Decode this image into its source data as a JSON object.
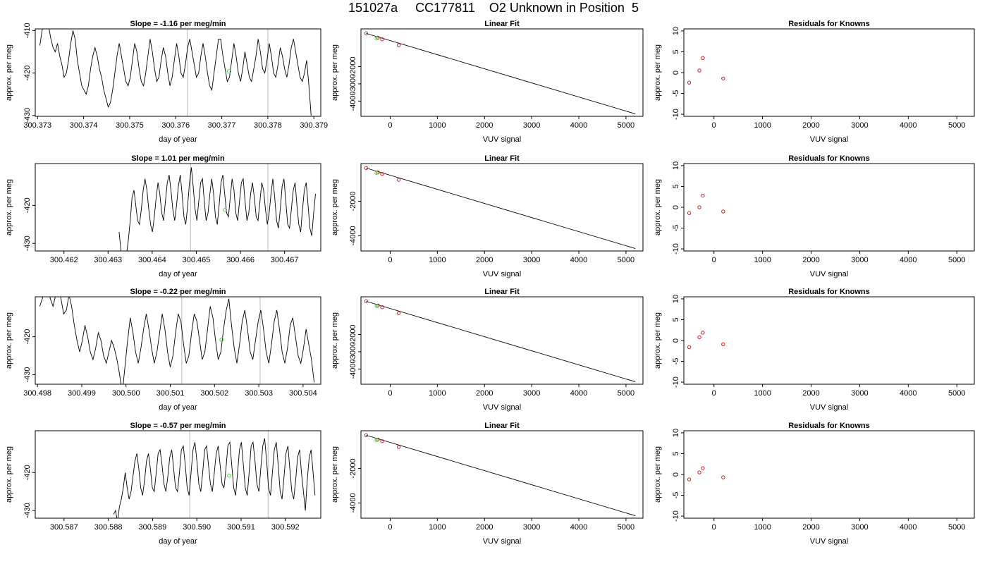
{
  "title": "151027a     CC177811    O2 Unknown in Position  5",
  "colors": {
    "trace": "#000000",
    "known_marker": "#cc2222",
    "unknown_marker": "#44dd44",
    "vline": "#bbbbbb"
  },
  "chart_data": [
    {
      "type": "line",
      "panel": "time-series",
      "title": "Slope =  -1.16  per meg/min",
      "xlabel": "day of year",
      "ylabel": "approx. per meg",
      "xlim": [
        300.37295,
        300.37915
      ],
      "ylim": [
        -430.2,
        -409.6
      ],
      "xticks": [
        300.373,
        300.374,
        300.375,
        300.376,
        300.377,
        300.378,
        300.379
      ],
      "xtick_labels": [
        "300.373",
        "300.374",
        "300.375",
        "300.376",
        "300.377",
        "300.378",
        "300.379"
      ],
      "yticks": [
        -410,
        -420,
        -430
      ],
      "ytick_labels": [
        "-410",
        "-420",
        "-430"
      ],
      "vlines": [
        300.37625,
        300.378
      ],
      "unknown_point": {
        "x": 300.37716,
        "y": -419.6
      },
      "trace_x_range": [
        300.37305,
        300.37894
      ],
      "trace_y": [
        -413.5,
        -410,
        -407,
        -405,
        -409,
        -412,
        -414,
        -415,
        -413,
        -416,
        -418,
        -421,
        -420,
        -417,
        -413,
        -410,
        -412,
        -417,
        -420,
        -423,
        -424,
        -425,
        -423,
        -419,
        -416,
        -414,
        -416,
        -419,
        -421,
        -424,
        -426,
        -428,
        -427,
        -424,
        -420,
        -416,
        -413,
        -416,
        -419,
        -422,
        -423,
        -421,
        -417,
        -413,
        -415,
        -419,
        -422,
        -423,
        -420,
        -416,
        -412,
        -415,
        -419,
        -422,
        -421,
        -417,
        -414,
        -416,
        -420,
        -423,
        -421,
        -417,
        -413,
        -416,
        -420,
        -421,
        -418,
        -414,
        -412,
        -415,
        -418,
        -421,
        -420,
        -416,
        -413,
        -416,
        -420,
        -423,
        -424,
        -420,
        -416,
        -412,
        -412,
        -416,
        -419,
        -422,
        -421,
        -417,
        -413,
        -416,
        -420,
        -422,
        -419,
        -415,
        -418,
        -421,
        -422,
        -419,
        -416,
        -412,
        -415,
        -419,
        -420,
        -417,
        -413,
        -416,
        -420,
        -421,
        -418,
        -414,
        -416,
        -419,
        -421,
        -418,
        -414,
        -412,
        -415,
        -418,
        -421,
        -422,
        -420,
        -417,
        -423,
        -430
      ]
    },
    {
      "type": "scatter",
      "panel": "linear-fit",
      "title": "Linear Fit",
      "xlabel": "VUV signal",
      "ylabel": "approx. per meg",
      "xlim": [
        -620,
        5360
      ],
      "ylim": [
        -4880,
        180
      ],
      "xticks": [
        0,
        1000,
        2000,
        3000,
        4000,
        5000
      ],
      "xtick_labels": [
        "0",
        "1000",
        "2000",
        "3000",
        "4000",
        "5000"
      ],
      "yticks": [
        -2000,
        -3000,
        -4000
      ],
      "ytick_labels": [
        "-2000",
        "-3000",
        "-4000"
      ],
      "knowns": [
        [
          -510,
          -80
        ],
        [
          -260,
          -330
        ],
        [
          -170,
          -420
        ],
        [
          180,
          -760
        ]
      ],
      "unknown": [
        -290,
        -360
      ],
      "fit_line": [
        [
          -510,
          -80
        ],
        [
          5200,
          -4740
        ]
      ]
    },
    {
      "type": "scatter",
      "panel": "residuals",
      "title": "Residuals for Knowns",
      "xlabel": "VUV signal",
      "ylabel": "approx. per meg",
      "xlim": [
        -620,
        5360
      ],
      "ylim": [
        -10.5,
        10.5
      ],
      "xticks": [
        0,
        1000,
        2000,
        3000,
        4000,
        5000
      ],
      "xtick_labels": [
        "0",
        "1000",
        "2000",
        "3000",
        "4000",
        "5000"
      ],
      "yticks": [
        10,
        5,
        0,
        -5,
        -10
      ],
      "ytick_labels": [
        "10",
        "5",
        "0",
        "-5",
        "-10"
      ],
      "residuals": [
        [
          -510,
          -2.4
        ],
        [
          -300,
          0.5
        ],
        [
          -230,
          3.5
        ],
        [
          190,
          -1.4
        ]
      ]
    },
    {
      "type": "line",
      "panel": "time-series",
      "title": "Slope =  1.01  per meg/min",
      "xlabel": "day of year",
      "ylabel": "approx. per meg",
      "xlim": [
        300.46135,
        300.46782
      ],
      "ylim": [
        -432,
        -409
      ],
      "xticks": [
        300.462,
        300.463,
        300.464,
        300.465,
        300.466,
        300.467
      ],
      "xtick_labels": [
        "300.462",
        "300.463",
        "300.464",
        "300.465",
        "300.466",
        "300.467"
      ],
      "yticks": [
        -420,
        -430
      ],
      "ytick_labels": [
        "-420",
        "-430"
      ],
      "vlines": [
        300.46487,
        300.46662
      ],
      "unknown_point": {
        "x": 300.46565,
        "y": -421.2
      },
      "trace_x_range": [
        300.46325,
        300.4677
      ],
      "trace_y": [
        -427,
        -432,
        -436,
        -437,
        -433,
        -429,
        -424,
        -418,
        -416,
        -420,
        -424,
        -425,
        -421,
        -416,
        -413,
        -416,
        -421,
        -425,
        -427,
        -423,
        -418,
        -414,
        -417,
        -422,
        -424,
        -419,
        -414,
        -412,
        -416,
        -421,
        -424,
        -420,
        -415,
        -412,
        -417,
        -423,
        -425,
        -420,
        -414,
        -410,
        -415,
        -421,
        -424,
        -419,
        -414,
        -413,
        -419,
        -424,
        -422,
        -417,
        -413,
        -417,
        -423,
        -425,
        -420,
        -414,
        -412,
        -417,
        -422,
        -423,
        -418,
        -413,
        -416,
        -422,
        -424,
        -419,
        -414,
        -413,
        -419,
        -424,
        -422,
        -417,
        -414,
        -418,
        -423,
        -424,
        -419,
        -414,
        -416,
        -421,
        -425,
        -422,
        -417,
        -413,
        -418,
        -424,
        -426,
        -421,
        -415,
        -413,
        -419,
        -425,
        -426,
        -421,
        -416,
        -414,
        -420,
        -425,
        -427,
        -421,
        -416,
        -414,
        -420,
        -426,
        -428,
        -422,
        -417
      ]
    },
    {
      "type": "scatter",
      "panel": "linear-fit",
      "title": "Linear Fit",
      "xlabel": "VUV signal",
      "ylabel": "approx. per meg",
      "xlim": [
        -620,
        5360
      ],
      "ylim": [
        -4880,
        180
      ],
      "xticks": [
        0,
        1000,
        2000,
        3000,
        4000,
        5000
      ],
      "xtick_labels": [
        "0",
        "1000",
        "2000",
        "3000",
        "4000",
        "5000"
      ],
      "yticks": [
        -2000,
        -4000
      ],
      "ytick_labels": [
        "-2000",
        "-4000"
      ],
      "knowns": [
        [
          -510,
          -80
        ],
        [
          -260,
          -330
        ],
        [
          -170,
          -420
        ],
        [
          180,
          -760
        ]
      ],
      "unknown": [
        -290,
        -360
      ],
      "fit_line": [
        [
          -510,
          -80
        ],
        [
          5200,
          -4740
        ]
      ]
    },
    {
      "type": "scatter",
      "panel": "residuals",
      "title": "Residuals for Knowns",
      "xlabel": "VUV signal",
      "ylabel": "approx. per meg",
      "xlim": [
        -620,
        5360
      ],
      "ylim": [
        -10.5,
        10.5
      ],
      "xticks": [
        0,
        1000,
        2000,
        3000,
        4000,
        5000
      ],
      "xtick_labels": [
        "0",
        "1000",
        "2000",
        "3000",
        "4000",
        "5000"
      ],
      "yticks": [
        10,
        5,
        0,
        -5,
        -10
      ],
      "ytick_labels": [
        "10",
        "5",
        "0",
        "-5",
        "-10"
      ],
      "residuals": [
        [
          -510,
          -1.4
        ],
        [
          -300,
          0
        ],
        [
          -230,
          2.8
        ],
        [
          190,
          -1
        ]
      ]
    },
    {
      "type": "line",
      "panel": "time-series",
      "title": "Slope =  -0.22  per meg/min",
      "xlabel": "day of year",
      "ylabel": "approx. per meg",
      "xlim": [
        300.49795,
        300.5044
      ],
      "ylim": [
        -432.5,
        -409.5
      ],
      "xticks": [
        300.498,
        300.499,
        300.5,
        300.501,
        300.502,
        300.503,
        300.504
      ],
      "xtick_labels": [
        "300.498",
        "300.499",
        "300.500",
        "300.501",
        "300.502",
        "300.503",
        "300.504"
      ],
      "yticks": [
        -420,
        -430
      ],
      "ytick_labels": [
        "-420",
        "-430"
      ],
      "vlines": [
        300.50126,
        300.50303
      ],
      "unknown_point": {
        "x": 300.50216,
        "y": -420.8
      },
      "trace_x_range": [
        300.49805,
        300.50425
      ],
      "trace_y": [
        -412,
        -410,
        -405,
        -407,
        -410,
        -412,
        -409,
        -407,
        -410,
        -414,
        -413,
        -409,
        -412,
        -417,
        -421,
        -424,
        -421,
        -417,
        -420,
        -424,
        -426,
        -423,
        -419,
        -421,
        -425,
        -427,
        -424,
        -421,
        -423,
        -426,
        -430,
        -435,
        -428,
        -421,
        -415,
        -419,
        -424,
        -427,
        -423,
        -418,
        -414,
        -418,
        -423,
        -427,
        -424,
        -419,
        -414,
        -418,
        -424,
        -428,
        -425,
        -419,
        -414,
        -416,
        -422,
        -427,
        -425,
        -419,
        -414,
        -416,
        -421,
        -426,
        -424,
        -418,
        -412,
        -415,
        -421,
        -426,
        -424,
        -418,
        -413,
        -410,
        -417,
        -423,
        -427,
        -422,
        -416,
        -413,
        -418,
        -424,
        -426,
        -421,
        -416,
        -413,
        -418,
        -424,
        -427,
        -422,
        -416,
        -413,
        -418,
        -424,
        -427,
        -423,
        -417,
        -415,
        -420,
        -425,
        -427,
        -423,
        -418,
        -422,
        -426,
        -432
      ]
    },
    {
      "type": "scatter",
      "panel": "linear-fit",
      "title": "Linear Fit",
      "xlabel": "VUV signal",
      "ylabel": "approx. per meg",
      "xlim": [
        -620,
        5360
      ],
      "ylim": [
        -4880,
        180
      ],
      "xticks": [
        0,
        1000,
        2000,
        3000,
        4000,
        5000
      ],
      "xtick_labels": [
        "0",
        "1000",
        "2000",
        "3000",
        "4000",
        "5000"
      ],
      "yticks": [
        -2000,
        -3000,
        -4000
      ],
      "ytick_labels": [
        "-2000",
        "-3000",
        "-4000"
      ],
      "knowns": [
        [
          -510,
          -80
        ],
        [
          -260,
          -330
        ],
        [
          -170,
          -420
        ],
        [
          180,
          -760
        ]
      ],
      "unknown": [
        -290,
        -360
      ],
      "fit_line": [
        [
          -510,
          -80
        ],
        [
          5200,
          -4740
        ]
      ]
    },
    {
      "type": "scatter",
      "panel": "residuals",
      "title": "Residuals for Knowns",
      "xlabel": "VUV signal",
      "ylabel": "approx. per meg",
      "xlim": [
        -620,
        5360
      ],
      "ylim": [
        -10.5,
        10.5
      ],
      "xticks": [
        0,
        1000,
        2000,
        3000,
        4000,
        5000
      ],
      "xtick_labels": [
        "0",
        "1000",
        "2000",
        "3000",
        "4000",
        "5000"
      ],
      "yticks": [
        10,
        5,
        0,
        -5,
        -10
      ],
      "ytick_labels": [
        "10",
        "5",
        "0",
        "-5",
        "-10"
      ],
      "residuals": [
        [
          -510,
          -1.6
        ],
        [
          -300,
          0.8
        ],
        [
          -230,
          1.9
        ],
        [
          190,
          -0.9
        ]
      ]
    },
    {
      "type": "line",
      "panel": "time-series",
      "title": "Slope =  -0.57  per meg/min",
      "xlabel": "day of year",
      "ylabel": "approx. per meg",
      "xlim": [
        300.58635,
        300.5928
      ],
      "ylim": [
        -432,
        -409
      ],
      "xticks": [
        300.587,
        300.588,
        300.589,
        300.59,
        300.591,
        300.592
      ],
      "xtick_labels": [
        "300.587",
        "300.588",
        "300.589",
        "300.590",
        "300.591",
        "300.592"
      ],
      "yticks": [
        -420,
        -430
      ],
      "ytick_labels": [
        "-420",
        "-430"
      ],
      "vlines": [
        300.58984,
        300.59161
      ],
      "unknown_point": {
        "x": 300.59073,
        "y": -420.8
      },
      "trace_x_range": [
        300.58812,
        300.59267
      ],
      "trace_y": [
        -431,
        -430,
        -433,
        -429,
        -427,
        -424,
        -420,
        -424,
        -427,
        -425,
        -421,
        -417,
        -415,
        -419,
        -424,
        -426,
        -422,
        -417,
        -415,
        -419,
        -424,
        -425,
        -420,
        -415,
        -414,
        -418,
        -423,
        -425,
        -421,
        -416,
        -414,
        -419,
        -424,
        -425,
        -420,
        -414,
        -413,
        -418,
        -424,
        -426,
        -420,
        -414,
        -412,
        -417,
        -423,
        -425,
        -420,
        -414,
        -413,
        -418,
        -423,
        -425,
        -420,
        -415,
        -413,
        -418,
        -423,
        -424,
        -419,
        -413,
        -412,
        -418,
        -424,
        -426,
        -420,
        -414,
        -412,
        -418,
        -424,
        -426,
        -420,
        -413,
        -412,
        -417,
        -423,
        -425,
        -419,
        -413,
        -411,
        -417,
        -424,
        -426,
        -420,
        -414,
        -412,
        -418,
        -425,
        -427,
        -421,
        -415,
        -413,
        -419,
        -425,
        -427,
        -422,
        -416,
        -414,
        -420,
        -425,
        -430,
        -422,
        -416,
        -414,
        -420,
        -426
      ]
    },
    {
      "type": "scatter",
      "panel": "linear-fit",
      "title": "Linear Fit",
      "xlabel": "VUV signal",
      "ylabel": "approx. per meg",
      "xlim": [
        -620,
        5360
      ],
      "ylim": [
        -4880,
        180
      ],
      "xticks": [
        0,
        1000,
        2000,
        3000,
        4000,
        5000
      ],
      "xtick_labels": [
        "0",
        "1000",
        "2000",
        "3000",
        "4000",
        "5000"
      ],
      "yticks": [
        -2000,
        -4000
      ],
      "ytick_labels": [
        "-2000",
        "-4000"
      ],
      "knowns": [
        [
          -510,
          -80
        ],
        [
          -260,
          -330
        ],
        [
          -170,
          -420
        ],
        [
          180,
          -760
        ]
      ],
      "unknown": [
        -290,
        -360
      ],
      "fit_line": [
        [
          -510,
          -80
        ],
        [
          5200,
          -4740
        ]
      ]
    },
    {
      "type": "scatter",
      "panel": "residuals",
      "title": "Residuals for Knowns",
      "xlabel": "VUV signal",
      "ylabel": "approx. per meg",
      "xlim": [
        -620,
        5360
      ],
      "ylim": [
        -10.5,
        10.5
      ],
      "xticks": [
        0,
        1000,
        2000,
        3000,
        4000,
        5000
      ],
      "xtick_labels": [
        "0",
        "1000",
        "2000",
        "3000",
        "4000",
        "5000"
      ],
      "yticks": [
        10,
        5,
        0,
        -5,
        -10
      ],
      "ytick_labels": [
        "10",
        "5",
        "0",
        "-5",
        "-10"
      ],
      "residuals": [
        [
          -510,
          -1.2
        ],
        [
          -300,
          0.5
        ],
        [
          -230,
          1.5
        ],
        [
          190,
          -0.7
        ]
      ]
    }
  ]
}
